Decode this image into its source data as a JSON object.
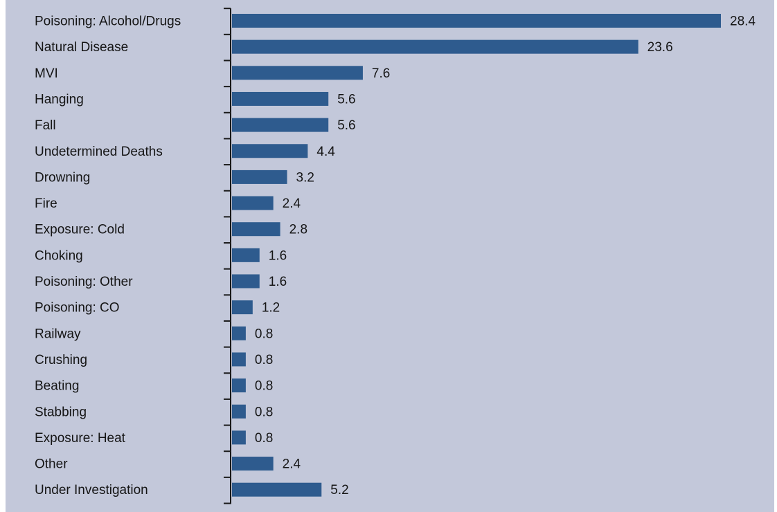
{
  "chart_data": {
    "type": "bar",
    "orientation": "horizontal",
    "categories": [
      "Poisoning: Alcohol/Drugs",
      "Natural Disease",
      "MVI",
      "Hanging",
      "Fall",
      "Undetermined Deaths",
      "Drowning",
      "Fire",
      "Exposure: Cold",
      "Choking",
      "Poisoning: Other",
      "Poisoning: CO",
      "Railway",
      "Crushing",
      "Beating",
      "Stabbing",
      "Exposure: Heat",
      "Other",
      "Under Investigation"
    ],
    "values": [
      28.4,
      23.6,
      7.6,
      5.6,
      5.6,
      4.4,
      3.2,
      2.4,
      2.8,
      1.6,
      1.6,
      1.2,
      0.8,
      0.8,
      0.8,
      0.8,
      0.8,
      2.4,
      5.2
    ],
    "value_labels": [
      "28.4",
      "23.6",
      "7.6",
      "5.6",
      "5.6",
      "4.4",
      "3.2",
      "2.4",
      "2.8",
      "1.6",
      "1.6",
      "1.2",
      "0.8",
      "0.8",
      "0.8",
      "0.8",
      "0.8",
      "2.4",
      "5.2"
    ],
    "xlim": [
      0,
      30
    ],
    "grid": false,
    "bar_color": "#2e5b8e",
    "background_color": "#c3c8da"
  }
}
